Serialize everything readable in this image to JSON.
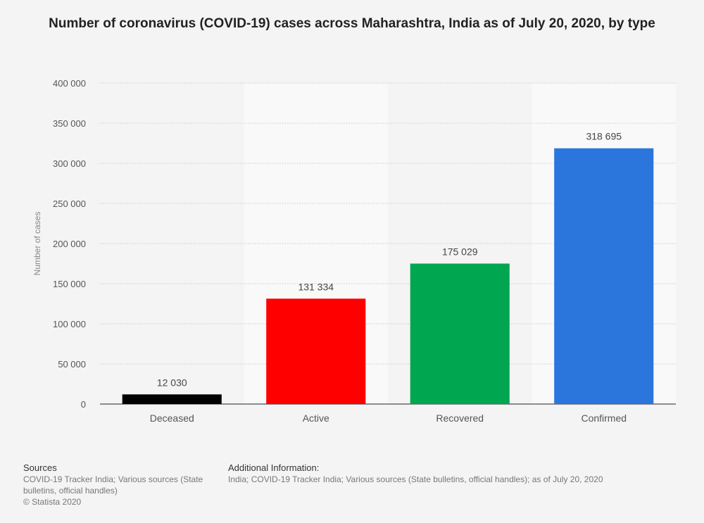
{
  "chart_data": {
    "type": "bar",
    "title": "Number of coronavirus (COVID-19) cases across Maharashtra, India as of July 20, 2020, by type",
    "ylabel": "Number of cases",
    "xlabel": "",
    "categories": [
      "Deceased",
      "Active",
      "Recovered",
      "Confirmed"
    ],
    "values": [
      12030,
      131334,
      175029,
      318695
    ],
    "value_labels": [
      "12 030",
      "131 334",
      "175 029",
      "318 695"
    ],
    "colors": [
      "#000000",
      "#ff0000",
      "#00a650",
      "#2a76dd"
    ],
    "ylim": [
      0,
      400000
    ],
    "yticks": [
      0,
      50000,
      100000,
      150000,
      200000,
      250000,
      300000,
      350000,
      400000
    ],
    "ytick_labels": [
      "0",
      "50 000",
      "100 000",
      "150 000",
      "200 000",
      "250 000",
      "300 000",
      "350 000",
      "400 000"
    ],
    "grid": true,
    "legend": "none"
  },
  "footer": {
    "sources_heading": "Sources",
    "sources_text": "COVID-19 Tracker India; Various sources (State bulletins, official handles)",
    "copyright": "© Statista 2020",
    "info_heading": "Additional Information:",
    "info_text": "India; COVID-19 Tracker India; Various sources (State bulletins, official handles); as of July 20, 2020"
  }
}
